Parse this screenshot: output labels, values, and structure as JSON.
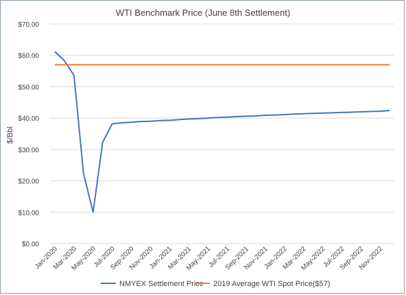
{
  "chart_data": {
    "type": "line",
    "title": "WTI Benchmark Price (June 8th Settlement)",
    "xlabel": "",
    "ylabel": "$/Bbl",
    "ylim": [
      0,
      70
    ],
    "y_ticks": [
      0,
      10,
      20,
      30,
      40,
      50,
      60,
      70
    ],
    "y_tick_labels": [
      "$0.00",
      "$10.00",
      "$20.00",
      "$30.00",
      "$40.00",
      "$50.00",
      "$60.00",
      "$70.00"
    ],
    "x_tick_labels": [
      "Jan-2020",
      "Mar-2020",
      "May-2020",
      "Jul-2020",
      "Sep-2020",
      "Nov-2020",
      "Jan-2021",
      "Mar-2021",
      "May-2021",
      "Jul-2021",
      "Sep-2021",
      "Nov-2021",
      "Jan-2022",
      "Mar-2022",
      "May-2022",
      "Jul-2022",
      "Sep-2022",
      "Nov-2022"
    ],
    "grid": true,
    "legend_position": "bottom",
    "colors": {
      "settlement": "#4472c4",
      "average": "#ed7d31",
      "grid": "#d9d9d9"
    },
    "series": [
      {
        "name": "NMYEX Settlement Price",
        "x": [
          "Jan-2020",
          "Feb-2020",
          "Mar-2020",
          "Apr-2020",
          "May-2020",
          "Jun-2020",
          "Jul-2020",
          "Aug-2020",
          "Sep-2020",
          "Oct-2020",
          "Nov-2020",
          "Dec-2020",
          "Jan-2021",
          "Feb-2021",
          "Mar-2021",
          "Apr-2021",
          "May-2021",
          "Jun-2021",
          "Jul-2021",
          "Aug-2021",
          "Sep-2021",
          "Oct-2021",
          "Nov-2021",
          "Dec-2021",
          "Jan-2022",
          "Feb-2022",
          "Mar-2022",
          "Apr-2022",
          "May-2022",
          "Jun-2022",
          "Jul-2022",
          "Aug-2022",
          "Sep-2022",
          "Oct-2022",
          "Nov-2022",
          "Dec-2022"
        ],
        "values": [
          61.2,
          58.3,
          53.6,
          22.3,
          10.0,
          32.3,
          38.2,
          38.5,
          38.7,
          38.9,
          39.0,
          39.2,
          39.3,
          39.5,
          39.7,
          39.8,
          40.0,
          40.2,
          40.3,
          40.5,
          40.6,
          40.7,
          40.9,
          41.0,
          41.1,
          41.3,
          41.4,
          41.5,
          41.6,
          41.7,
          41.8,
          41.9,
          42.0,
          42.1,
          42.2,
          42.4
        ]
      },
      {
        "name": "2019 Average WTI Spot Price($57)",
        "x": [
          "Jan-2020",
          "Dec-2022"
        ],
        "values": [
          57,
          57
        ]
      }
    ]
  }
}
